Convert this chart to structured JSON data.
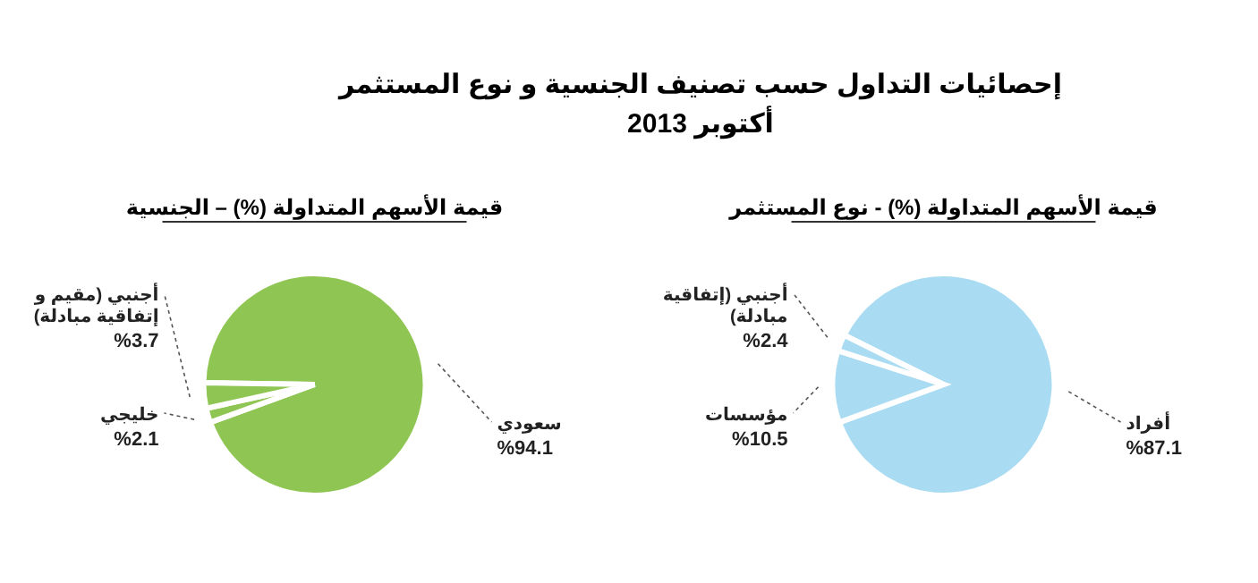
{
  "chart_data": [
    {
      "type": "other",
      "title": "إحصائيات التداول حسب تصنيف الجنسية و نوع المستثمر",
      "subtitle": "أكتوبر 2013"
    },
    {
      "type": "pie",
      "title": "قيمة الأسهم المتداولة (%) - نوع المستثمر",
      "categories": [
        "أفراد",
        "مؤسسات",
        "أجنبي (إتفاقية مبادلة)"
      ],
      "values": [
        87.1,
        10.5,
        2.4
      ],
      "colors": [
        "#a9dcf2",
        "#a9dcf2",
        "#a9dcf2"
      ],
      "value_labels": [
        "%87.1",
        "%10.5",
        "%2.4"
      ]
    },
    {
      "type": "pie",
      "title": "قيمة الأسهم المتداولة (%) – الجنسية",
      "categories": [
        "سعودي",
        "خليجي",
        "أجنبي (مقيم و إتفاقية مبادلة)"
      ],
      "values": [
        94.1,
        2.1,
        3.7
      ],
      "colors": [
        "#8fc653",
        "#8fc653",
        "#8fc653"
      ],
      "value_labels": [
        "%94.1",
        "%2.1",
        "%3.7"
      ]
    }
  ]
}
